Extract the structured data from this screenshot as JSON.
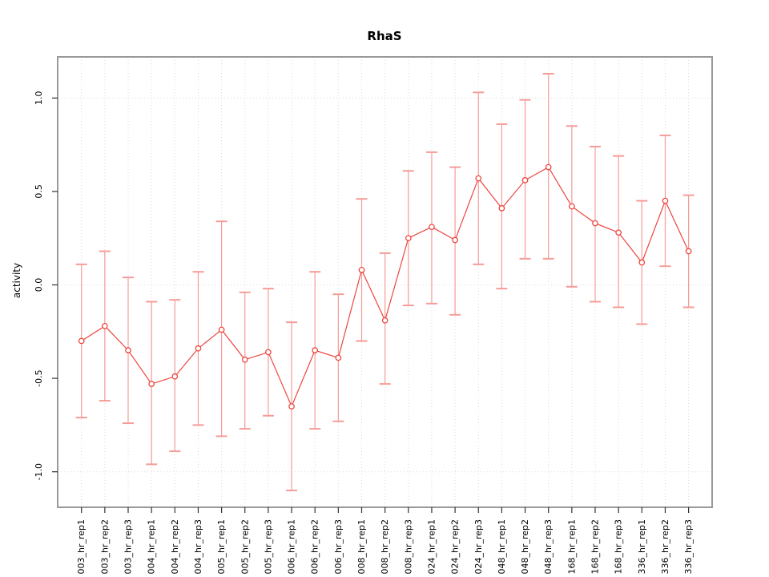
{
  "title": "RhaS",
  "ylabel": "activity",
  "chart_data": {
    "type": "line",
    "title": "RhaS",
    "xlabel": "",
    "ylabel": "activity",
    "legend": "none",
    "grid": "dotted; vertical line at every category; horizontal lines at 1.0, 0.0, -1.0",
    "categories": [
      "003_hr_rep1",
      "003_hr_rep2",
      "003_hr_rep3",
      "004_hr_rep1",
      "004_hr_rep2",
      "004_hr_rep3",
      "005_hr_rep1",
      "005_hr_rep2",
      "005_hr_rep3",
      "006_hr_rep1",
      "006_hr_rep2",
      "006_hr_rep3",
      "008_hr_rep1",
      "008_hr_rep2",
      "008_hr_rep3",
      "024_hr_rep1",
      "024_hr_rep2",
      "024_hr_rep3",
      "048_hr_rep1",
      "048_hr_rep2",
      "048_hr_rep3",
      "168_hr_rep1",
      "168_hr_rep2",
      "168_hr_rep3",
      "336_hr_rep1",
      "336_hr_rep2",
      "336_hr_rep3"
    ],
    "values": [
      -0.3,
      -0.22,
      -0.35,
      -0.53,
      -0.49,
      -0.34,
      -0.24,
      -0.4,
      -0.36,
      -0.65,
      -0.35,
      -0.39,
      0.08,
      -0.19,
      0.25,
      0.31,
      0.24,
      0.57,
      0.41,
      0.56,
      0.63,
      0.42,
      0.33,
      0.28,
      0.12,
      0.45,
      0.18
    ],
    "error_upper": [
      0.11,
      0.18,
      0.04,
      -0.09,
      -0.08,
      0.07,
      0.34,
      -0.04,
      -0.02,
      -0.2,
      0.07,
      -0.05,
      0.46,
      0.17,
      0.61,
      0.71,
      0.63,
      1.03,
      0.86,
      0.99,
      1.13,
      0.85,
      0.74,
      0.69,
      0.45,
      0.8,
      0.48
    ],
    "error_lower": [
      -0.71,
      -0.62,
      -0.74,
      -0.96,
      -0.89,
      -0.75,
      -0.81,
      -0.77,
      -0.7,
      -1.1,
      -0.77,
      -0.73,
      -0.3,
      -0.53,
      -0.11,
      -0.1,
      -0.16,
      0.11,
      -0.02,
      0.14,
      0.14,
      -0.01,
      -0.09,
      -0.12,
      -0.21,
      0.1,
      -0.12
    ],
    "yticks": [
      1.0,
      0.5,
      0.0,
      -0.5,
      -1.0
    ],
    "ytick_labels": [
      "1.0",
      "0.5",
      "0.0",
      "-0.5",
      "-1.0"
    ],
    "hgrid_values": [
      1.0,
      0.0,
      -1.0
    ],
    "ylim": [
      -1.19,
      1.22
    ],
    "colors": {
      "series": "#ee453e",
      "error_bar": "#f59c98",
      "grid": "#d9d9d9",
      "box": "#999999",
      "tick": "#333333",
      "text": "#000000"
    }
  }
}
